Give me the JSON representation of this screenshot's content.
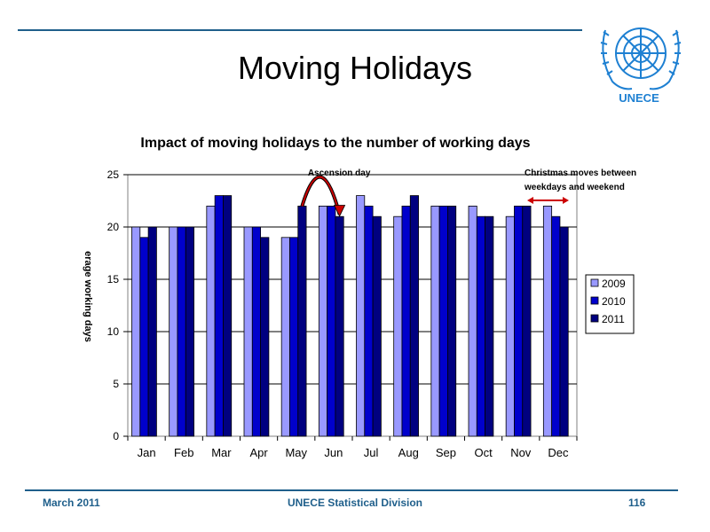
{
  "slide": {
    "title": "Moving Holidays",
    "logo_text": "UNECE",
    "footer_left": "March 2011",
    "footer_center": "UNECE Statistical Division",
    "footer_right": "116",
    "accent_color": "#1f5f8b",
    "logo_color": "#1e80d2"
  },
  "chart_data": {
    "type": "bar",
    "title": "Impact of moving holidays to the number of working days",
    "ylabel": "erage working days",
    "xlabel": "",
    "categories": [
      "Jan",
      "Feb",
      "Mar",
      "Apr",
      "May",
      "Jun",
      "Jul",
      "Aug",
      "Sep",
      "Oct",
      "Nov",
      "Dec"
    ],
    "series": [
      {
        "name": "2009",
        "color": "#9999ff",
        "values": [
          20,
          20,
          22,
          20,
          19,
          22,
          23,
          21,
          22,
          22,
          21,
          22
        ]
      },
      {
        "name": "2010",
        "color": "#0000cc",
        "values": [
          19,
          20,
          23,
          20,
          19,
          22,
          22,
          22,
          22,
          21,
          22,
          21
        ]
      },
      {
        "name": "2011",
        "color": "#000080",
        "values": [
          20,
          20,
          23,
          19,
          22,
          21,
          21,
          23,
          22,
          21,
          22,
          20
        ]
      }
    ],
    "ylim": [
      0,
      25
    ],
    "yticks": [
      0,
      5,
      10,
      15,
      20,
      25
    ],
    "grid": true,
    "legend": "right",
    "annotations": [
      {
        "text": "Ascension day",
        "category": "Jun"
      },
      {
        "text": "Christmas moves between",
        "text2": "weekdays and weekend",
        "category": "Dec"
      }
    ]
  }
}
